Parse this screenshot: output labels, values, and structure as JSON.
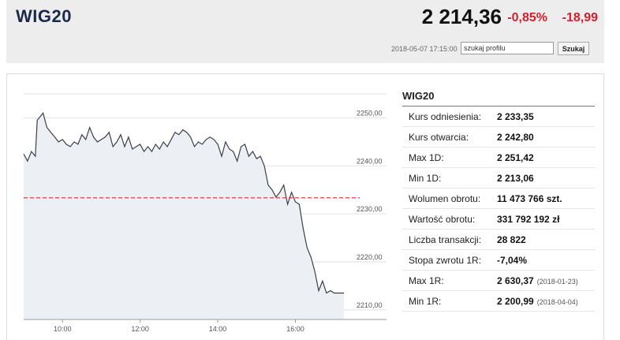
{
  "header": {
    "ticker": "WIG20",
    "price": "2 214,36",
    "change_pct": "-0,85%",
    "change_abs": "-18,99",
    "timestamp": "2018-05-07 17:15:00",
    "search_value": "szukaj profilu",
    "search_button": "Szukaj",
    "colors": {
      "negative": "#d0202f",
      "title": "#1b2a4a"
    }
  },
  "info": {
    "title": "WIG20",
    "rows": [
      {
        "label": "Kurs odniesienia:",
        "value": "2 233,35",
        "sub": ""
      },
      {
        "label": "Kurs otwarcia:",
        "value": "2 242,80",
        "sub": ""
      },
      {
        "label": "Max 1D:",
        "value": "2 251,42",
        "sub": ""
      },
      {
        "label": "Min 1D:",
        "value": "2 213,06",
        "sub": ""
      },
      {
        "label": "Wolumen obrotu:",
        "value": "11 473 766 szt.",
        "sub": ""
      },
      {
        "label": "Wartość obrotu:",
        "value": "331 792 192 zł",
        "sub": ""
      },
      {
        "label": "Liczba transakcji:",
        "value": "28 822",
        "sub": ""
      },
      {
        "label": "Stopa zwrotu 1R:",
        "value": "-7,04%",
        "sub": ""
      },
      {
        "label": "Max 1R:",
        "value": "2 630,37",
        "sub": "(2018-01-23)"
      },
      {
        "label": "Min 1R:",
        "value": "2 200,99",
        "sub": "(2018-04-04)"
      }
    ]
  },
  "chart_data": {
    "type": "area",
    "x_ticks": [
      "10:00",
      "12:00",
      "14:00",
      "16:00"
    ],
    "x_tick_hours": [
      10,
      12,
      14,
      16
    ],
    "y_ticks": [
      2210,
      2220,
      2230,
      2240,
      2250
    ],
    "y_tick_labels": [
      "2210,00",
      "2220,00",
      "2230,00",
      "2240,00",
      "2250,00"
    ],
    "xlim": [
      9.0,
      17.25
    ],
    "ylim": [
      2208,
      2255
    ],
    "reference_line": 2233.35,
    "colors": {
      "line": "#3a3f4a",
      "fill": "#eceff3",
      "reference": "#e03b3b",
      "grid": "#e2e2e2"
    },
    "x": [
      9.0,
      9.1,
      9.2,
      9.3,
      9.35,
      9.5,
      9.6,
      9.7,
      9.8,
      9.9,
      10.0,
      10.1,
      10.2,
      10.3,
      10.4,
      10.5,
      10.6,
      10.7,
      10.8,
      10.9,
      11.0,
      11.1,
      11.2,
      11.3,
      11.4,
      11.5,
      11.6,
      11.7,
      11.8,
      11.9,
      12.0,
      12.1,
      12.2,
      12.3,
      12.4,
      12.5,
      12.6,
      12.7,
      12.8,
      12.9,
      13.0,
      13.1,
      13.2,
      13.3,
      13.4,
      13.5,
      13.6,
      13.7,
      13.8,
      13.9,
      14.0,
      14.1,
      14.2,
      14.3,
      14.4,
      14.5,
      14.6,
      14.7,
      14.8,
      14.9,
      15.0,
      15.1,
      15.2,
      15.3,
      15.4,
      15.5,
      15.6,
      15.7,
      15.8,
      15.9,
      16.0,
      16.1,
      16.2,
      16.3,
      16.4,
      16.5,
      16.6,
      16.7,
      16.8,
      16.9,
      17.0,
      17.1,
      17.25
    ],
    "y": [
      2242.5,
      2241.0,
      2243.0,
      2242.0,
      2249.5,
      2251.0,
      2248.0,
      2247.0,
      2246.0,
      2245.0,
      2245.5,
      2244.5,
      2244.0,
      2245.0,
      2244.5,
      2246.5,
      2245.5,
      2248.0,
      2246.0,
      2245.0,
      2245.5,
      2246.0,
      2247.0,
      2244.0,
      2245.0,
      2246.5,
      2244.0,
      2246.0,
      2243.5,
      2244.0,
      2244.5,
      2243.0,
      2244.0,
      2243.0,
      2244.5,
      2243.5,
      2245.0,
      2244.0,
      2245.5,
      2247.0,
      2246.5,
      2247.5,
      2247.0,
      2246.0,
      2244.0,
      2245.0,
      2244.5,
      2245.5,
      2246.0,
      2245.5,
      2244.5,
      2242.0,
      2245.0,
      2243.5,
      2243.0,
      2241.0,
      2244.0,
      2244.5,
      2242.0,
      2243.0,
      2241.5,
      2242.0,
      2240.0,
      2236.0,
      2235.0,
      2233.5,
      2234.5,
      2236.0,
      2232.0,
      2234.5,
      2232.5,
      2232.0,
      2227.0,
      2223.0,
      2221.0,
      2218.0,
      2214.0,
      2216.0,
      2213.5,
      2214.0,
      2213.5,
      2213.5,
      2213.5
    ]
  }
}
